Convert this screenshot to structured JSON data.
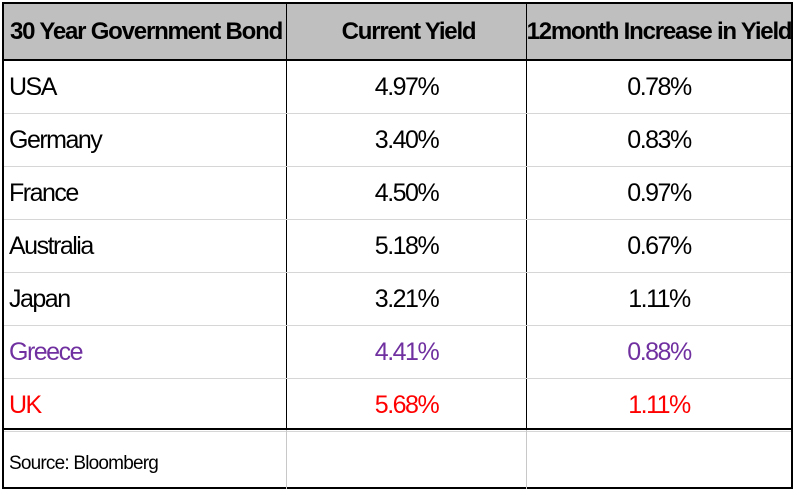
{
  "chart_data": {
    "type": "table",
    "columns": [
      "30 Year Government  Bond",
      "Current Yield",
      "12month Increase in Yield"
    ],
    "rows": [
      {
        "country": "USA",
        "current_yield": "4.97%",
        "increase_12m": "0.78%",
        "color": "#000000"
      },
      {
        "country": "Germany",
        "current_yield": "3.40%",
        "increase_12m": "0.83%",
        "color": "#000000"
      },
      {
        "country": "France",
        "current_yield": "4.50%",
        "increase_12m": "0.97%",
        "color": "#000000"
      },
      {
        "country": "Australia",
        "current_yield": "5.18%",
        "increase_12m": "0.67%",
        "color": "#000000"
      },
      {
        "country": "Japan",
        "current_yield": "3.21%",
        "increase_12m": "1.11%",
        "color": "#000000"
      },
      {
        "country": "Greece",
        "current_yield": "4.41%",
        "increase_12m": "0.88%",
        "color": "#7030a0"
      },
      {
        "country": "UK",
        "current_yield": "5.68%",
        "increase_12m": "1.11%",
        "color": "#ff0000"
      }
    ],
    "source": "Source: Bloomberg",
    "header_background": "#bfbfbf"
  }
}
